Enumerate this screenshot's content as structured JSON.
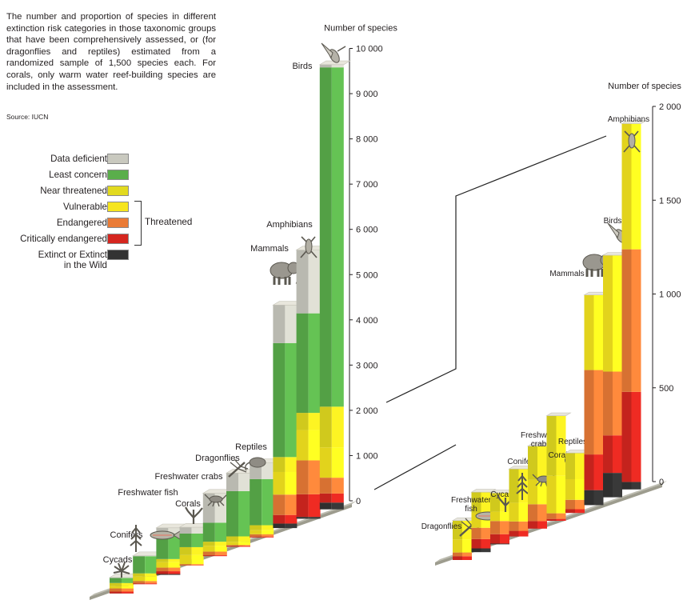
{
  "caption": "The number and proportion of species in different extinction risk categories in those taxonomic groups that have been comprehensively assessed, or (for dragonflies and reptiles) estimated from a randomized sample of 1,500 species each. For corals, only warm water reef-building species are included in the assessment.",
  "source": "Source: IUCN",
  "colors": {
    "data_deficient": "#c9c9bf",
    "least_concern": "#5aae4b",
    "near_threatened": "#e2da1f",
    "vulnerable": "#f6e51e",
    "endangered": "#ea7b36",
    "critically_endangered": "#d5261f",
    "extinct": "#333333",
    "base": "#9d9c8e"
  },
  "legend": {
    "items": [
      {
        "key": "data_deficient",
        "label": "Data deficient"
      },
      {
        "key": "least_concern",
        "label": "Least concern"
      },
      {
        "key": "near_threatened",
        "label": "Near threatened"
      },
      {
        "key": "vulnerable",
        "label": "Vulnerable"
      },
      {
        "key": "endangered",
        "label": "Endangered"
      },
      {
        "key": "critically_endangered",
        "label": "Critically endangered"
      },
      {
        "key": "extinct",
        "label": "Extinct or Extinct\nin the Wild"
      }
    ],
    "threatened_label": "Threatened"
  },
  "chart_data": [
    {
      "type": "bar",
      "stacked": true,
      "ylabel": "Number of species",
      "ylim": [
        0,
        10000
      ],
      "yticks": [
        0,
        1000,
        2000,
        3000,
        4000,
        5000,
        6000,
        7000,
        8000,
        9000,
        10000
      ],
      "ytick_labels": [
        "0",
        "1 000",
        "2 000",
        "3 000",
        "4 000",
        "5 000",
        "6 000",
        "7 000",
        "8 000",
        "9 000",
        "10 000"
      ],
      "categories": [
        "Cycads",
        "Conifers",
        "Freshwater fish",
        "Corals",
        "Freshwater crabs",
        "Dragonflies",
        "Reptiles",
        "Mammals",
        "Amphibians",
        "Birds"
      ],
      "series": [
        {
          "name": "Extinct or Extinct in the Wild",
          "values": [
            4,
            0,
            20,
            0,
            0,
            0,
            0,
            100,
            40,
            150
          ]
        },
        {
          "name": "Critically endangered",
          "values": [
            40,
            20,
            60,
            6,
            20,
            20,
            20,
            190,
            500,
            200
          ]
        },
        {
          "name": "Endangered",
          "values": [
            70,
            50,
            80,
            25,
            80,
            20,
            50,
            450,
            750,
            350
          ]
        },
        {
          "name": "Vulnerable",
          "values": [
            50,
            100,
            120,
            200,
            130,
            70,
            90,
            500,
            670,
            670
          ]
        },
        {
          "name": "Near threatened",
          "values": [
            70,
            70,
            70,
            175,
            90,
            120,
            110,
            330,
            380,
            900
          ]
        },
        {
          "name": "Least concern",
          "values": [
            110,
            380,
            560,
            300,
            420,
            1000,
            1020,
            2520,
            2200,
            7500
          ]
        },
        {
          "name": "Data deficient",
          "values": [
            10,
            10,
            130,
            140,
            650,
            400,
            360,
            840,
            1400,
            60
          ]
        }
      ]
    },
    {
      "type": "bar",
      "stacked": true,
      "ylabel": "Number of species",
      "ylim": [
        0,
        2000
      ],
      "yticks": [
        0,
        500,
        1000,
        1500,
        2000
      ],
      "ytick_labels": [
        "0",
        "500",
        "1 000",
        "1 500",
        "2 000"
      ],
      "categories": [
        "Dragonflies",
        "Freshwater fish",
        "Cycads",
        "Conifers",
        "Freshwater crabs",
        "Corals",
        "Reptiles",
        "Mammals",
        "Birds",
        "Amphibians"
      ],
      "series": [
        {
          "name": "Extinct or Extinct in the Wild",
          "values": [
            0,
            20,
            4,
            0,
            0,
            0,
            0,
            80,
            130,
            40
          ]
        },
        {
          "name": "Critically endangered",
          "values": [
            20,
            50,
            50,
            30,
            40,
            10,
            20,
            190,
            200,
            480
          ]
        },
        {
          "name": "Endangered",
          "values": [
            20,
            60,
            70,
            50,
            90,
            30,
            50,
            450,
            340,
            760
          ]
        },
        {
          "name": "Vulnerable",
          "values": [
            70,
            80,
            50,
            100,
            130,
            200,
            110,
            400,
            620,
            670
          ]
        },
        {
          "name": "Near threatened",
          "values": [
            100,
            110,
            100,
            180,
            180,
            320,
            140,
            0,
            0,
            0
          ]
        }
      ]
    }
  ],
  "panels": {
    "left": {
      "ylabel": "Number of species"
    },
    "right": {
      "ylabel": "Number of species"
    }
  },
  "icon_names": [
    "cycad-icon",
    "conifer-icon",
    "fish-icon",
    "coral-icon",
    "crab-icon",
    "dragonfly-icon",
    "lizard-icon",
    "elephant-icon",
    "frog-icon",
    "hummingbird-icon"
  ]
}
